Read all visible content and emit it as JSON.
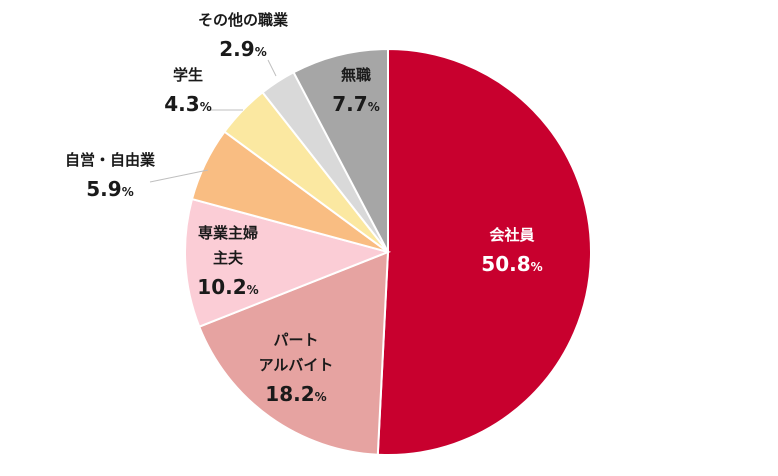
{
  "chart_data": {
    "type": "pie",
    "start_angle_deg": 0,
    "direction": "clockwise",
    "slices": [
      {
        "label": "会社員",
        "value": 50.8,
        "color": "#c8002e"
      },
      {
        "label": "パート\nアルバイト",
        "value": 18.2,
        "color": "#e6a3a1"
      },
      {
        "label": "専業主婦\n主夫",
        "value": 10.2,
        "color": "#fbcdd6"
      },
      {
        "label": "自営・自由業",
        "value": 5.9,
        "color": "#f9bd82"
      },
      {
        "label": "学生",
        "value": 4.3,
        "color": "#fbe8a1"
      },
      {
        "label": "その他の職業",
        "value": 2.9,
        "color": "#d9d9d9"
      },
      {
        "label": "無職",
        "value": 7.7,
        "color": "#a6a6a6"
      }
    ],
    "value_format": {
      "value": "{v}",
      "suffix": "%"
    },
    "legend": "none",
    "title": ""
  }
}
